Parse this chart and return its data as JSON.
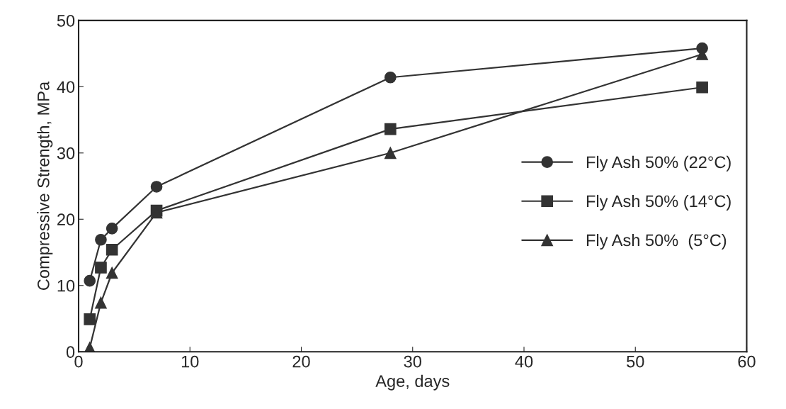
{
  "chart_data": {
    "type": "line",
    "xlabel": "Age, days",
    "ylabel": "Compressive Strength, MPa",
    "x": [
      1,
      2,
      3,
      7,
      28,
      56
    ],
    "series": [
      {
        "name": "Fly Ash 50% (22°C)",
        "color": "#333333",
        "marker": "circle",
        "values": [
          10.7,
          16.9,
          18.6,
          24.9,
          41.4,
          45.8
        ]
      },
      {
        "name": "Fly Ash 50% (14°C)",
        "color": "#333333",
        "marker": "square",
        "values": [
          4.9,
          12.7,
          15.4,
          21.3,
          33.6,
          39.9
        ]
      },
      {
        "name": "Fly Ash 50%  (5°C)",
        "color": "#333333",
        "marker": "triangle",
        "values": [
          0.6,
          7.4,
          11.9,
          21.0,
          30.0,
          44.9
        ]
      }
    ],
    "xlim": [
      0,
      60
    ],
    "xticks": [
      0,
      10,
      20,
      30,
      40,
      50,
      60
    ],
    "ylim": [
      0,
      50
    ],
    "yticks": [
      0,
      10,
      20,
      30,
      40,
      50
    ],
    "grid": false,
    "legend": "right",
    "line_style": "solid"
  }
}
